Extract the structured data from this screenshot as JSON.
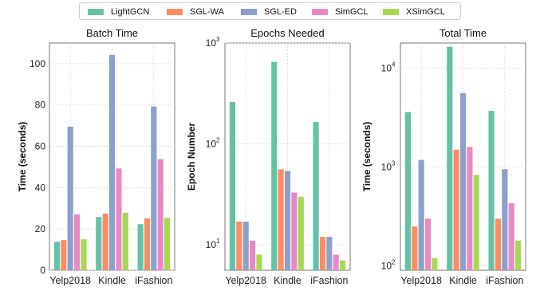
{
  "legend": [
    {
      "name": "LightGCN",
      "color": "#66c2a5"
    },
    {
      "name": "SGL-WA",
      "color": "#fc8d62"
    },
    {
      "name": "SGL-ED",
      "color": "#8da0cb"
    },
    {
      "name": "SimGCL",
      "color": "#e78ac3"
    },
    {
      "name": "XSimGCL",
      "color": "#a6d854"
    }
  ],
  "chart_data": [
    {
      "type": "bar",
      "title": "Batch Time",
      "xlabel": "",
      "ylabel": "Time (seconds)",
      "scale": "linear",
      "ylim": [
        0,
        110
      ],
      "yticks": [
        0,
        20,
        40,
        60,
        80,
        100
      ],
      "ytick_labels": [
        "0",
        "20",
        "40",
        "60",
        "80",
        "100"
      ],
      "grid": true,
      "categories": [
        "Yelp2018",
        "Kindle",
        "iFashion"
      ],
      "series": [
        {
          "name": "LightGCN",
          "values": [
            13.8,
            25.8,
            22.3
          ]
        },
        {
          "name": "SGL-WA",
          "values": [
            14.6,
            27.4,
            25.1
          ]
        },
        {
          "name": "SGL-ED",
          "values": [
            69.5,
            104.3,
            79.3
          ]
        },
        {
          "name": "SimGCL",
          "values": [
            27.1,
            49.3,
            53.8
          ]
        },
        {
          "name": "XSimGCL",
          "values": [
            15.0,
            27.8,
            25.4
          ]
        }
      ]
    },
    {
      "type": "bar",
      "title": "Epochs Needed",
      "xlabel": "",
      "ylabel": "Epoch Number",
      "scale": "log",
      "ylim": [
        5.6,
        1000
      ],
      "yticks": [
        10,
        100,
        1000
      ],
      "ytick_labels": [
        "10",
        "10",
        "10"
      ],
      "ytick_exponents": [
        "1",
        "2",
        "3"
      ],
      "grid": true,
      "categories": [
        "Yelp2018",
        "Kindle",
        "iFashion"
      ],
      "series": [
        {
          "name": "LightGCN",
          "values": [
            260,
            650,
            165
          ]
        },
        {
          "name": "SGL-WA",
          "values": [
            17,
            56,
            12
          ]
        },
        {
          "name": "SGL-ED",
          "values": [
            17,
            54,
            12
          ]
        },
        {
          "name": "SimGCL",
          "values": [
            11,
            33,
            8
          ]
        },
        {
          "name": "XSimGCL",
          "values": [
            8,
            30,
            7
          ]
        }
      ]
    },
    {
      "type": "bar",
      "title": "Total Time",
      "xlabel": "",
      "ylabel": "Time (seconds)",
      "scale": "log",
      "ylim": [
        90,
        18000
      ],
      "yticks": [
        100,
        1000,
        10000
      ],
      "ytick_labels": [
        "10",
        "10",
        "10"
      ],
      "ytick_exponents": [
        "2",
        "3",
        "4"
      ],
      "grid": true,
      "categories": [
        "Yelp2018",
        "Kindle",
        "iFashion"
      ],
      "series": [
        {
          "name": "LightGCN",
          "values": [
            3600,
            16500,
            3700
          ]
        },
        {
          "name": "SGL-WA",
          "values": [
            250,
            1500,
            300
          ]
        },
        {
          "name": "SGL-ED",
          "values": [
            1180,
            5600,
            950
          ]
        },
        {
          "name": "SimGCL",
          "values": [
            300,
            1600,
            430
          ]
        },
        {
          "name": "XSimGCL",
          "values": [
            120,
            830,
            180
          ]
        }
      ]
    }
  ]
}
